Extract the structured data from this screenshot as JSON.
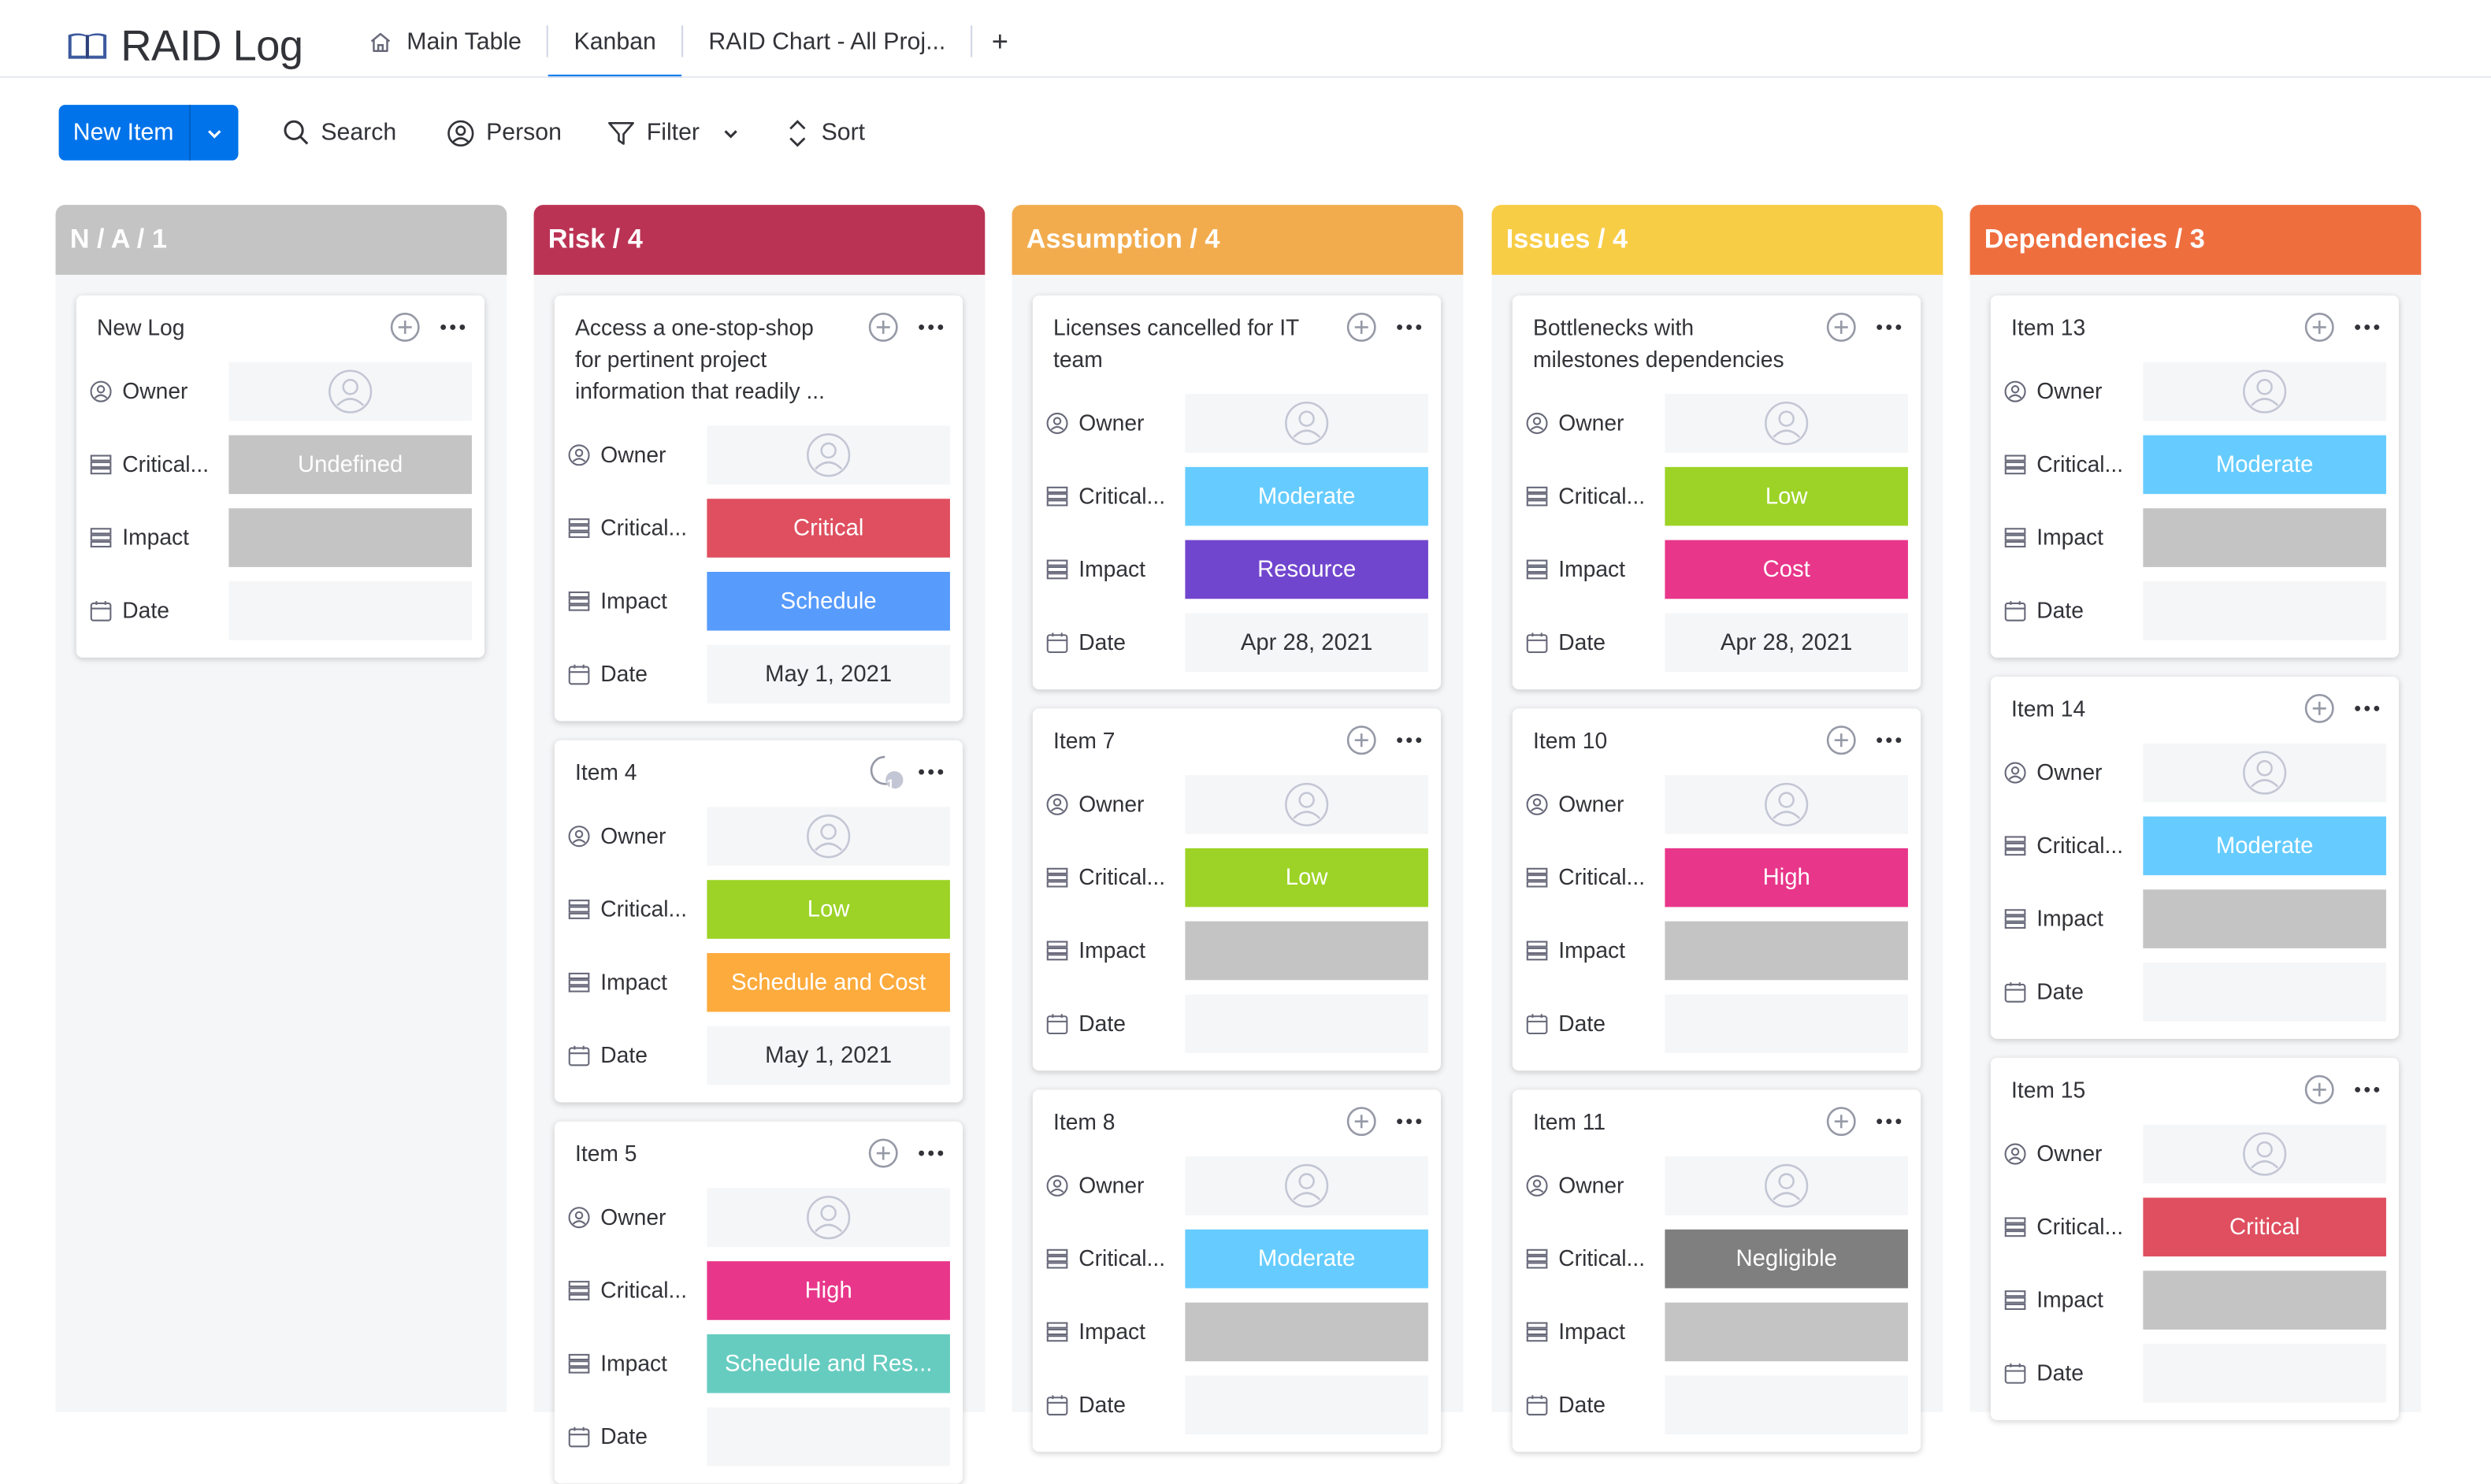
{
  "header": {
    "title": "RAID Log",
    "tabs": [
      {
        "label": "Main Table"
      },
      {
        "label": "Kanban"
      },
      {
        "label": "RAID Chart - All Proj..."
      }
    ],
    "add_tab": "+"
  },
  "toolbar": {
    "new_item": "New Item",
    "search": "Search",
    "person": "Person",
    "filter": "Filter",
    "sort": "Sort"
  },
  "colors": {
    "accent": "#0073ea",
    "undefined": "#c4c4c4",
    "critical": "#df4f5f",
    "schedule": "#579bfc",
    "low": "#9cd326",
    "schedule_and_cost": "#fdab3d",
    "high": "#e8368a",
    "schedule_and_res": "#66ccc0",
    "moderate": "#66ccff",
    "resource": "#7146ce",
    "cost": "#e8368a",
    "negligible": "#7f7f7f"
  },
  "field_labels": {
    "owner": "Owner",
    "critical": "Critical...",
    "impact": "Impact",
    "date": "Date"
  },
  "columns": [
    {
      "header": "N / A / 1",
      "color": "#c4c4c4",
      "cards": [
        {
          "title": "New Log",
          "criticality": "Undefined",
          "criticality_color": "#c4c4c4",
          "impact": "",
          "impact_color": "#c4c4c4",
          "date": ""
        }
      ]
    },
    {
      "header": "Risk / 4",
      "color": "#bb3354",
      "cards": [
        {
          "title": "Access a one-stop-shop for pertinent project information that readily ...",
          "criticality": "Critical",
          "criticality_color": "#df4f5f",
          "impact": "Schedule",
          "impact_color": "#579bfc",
          "date": "May 1, 2021"
        },
        {
          "title": "Item 4",
          "criticality": "Low",
          "criticality_color": "#9cd326",
          "impact": "Schedule and Cost",
          "impact_color": "#fdab3d",
          "date": "May 1, 2021",
          "updates": "1"
        },
        {
          "title": "Item 5",
          "criticality": "High",
          "criticality_color": "#e8368a",
          "impact": "Schedule and Res...",
          "impact_color": "#66ccc0",
          "date": ""
        }
      ]
    },
    {
      "header": "Assumption / 4",
      "color": "#f2ac4e",
      "cards": [
        {
          "title": "Licenses cancelled for IT team",
          "criticality": "Moderate",
          "criticality_color": "#66ccff",
          "impact": "Resource",
          "impact_color": "#7146ce",
          "date": "Apr 28, 2021"
        },
        {
          "title": "Item 7",
          "criticality": "Low",
          "criticality_color": "#9cd326",
          "impact": "",
          "impact_color": "#c4c4c4",
          "date": ""
        },
        {
          "title": "Item 8",
          "criticality": "Moderate",
          "criticality_color": "#66ccff",
          "impact": "",
          "impact_color": "#c4c4c4",
          "date": ""
        }
      ]
    },
    {
      "header": "Issues / 4",
      "color": "#f8cd46",
      "cards": [
        {
          "title": "Bottlenecks with milestones dependencies",
          "criticality": "Low",
          "criticality_color": "#9cd326",
          "impact": "Cost",
          "impact_color": "#e8368a",
          "date": "Apr 28, 2021"
        },
        {
          "title": "Item 10",
          "criticality": "High",
          "criticality_color": "#e8368a",
          "impact": "",
          "impact_color": "#c4c4c4",
          "date": ""
        },
        {
          "title": "Item 11",
          "criticality": "Negligible",
          "criticality_color": "#7f7f7f",
          "impact": "",
          "impact_color": "#c4c4c4",
          "date": ""
        }
      ]
    },
    {
      "header": "Dependencies / 3",
      "color": "#ef6e3e",
      "cards": [
        {
          "title": "Item 13",
          "criticality": "Moderate",
          "criticality_color": "#66ccff",
          "impact": "",
          "impact_color": "#c4c4c4",
          "date": ""
        },
        {
          "title": "Item 14",
          "criticality": "Moderate",
          "criticality_color": "#66ccff",
          "impact": "",
          "impact_color": "#c4c4c4",
          "date": ""
        },
        {
          "title": "Item 15",
          "criticality": "Critical",
          "criticality_color": "#df4f5f",
          "impact": "",
          "impact_color": "#c4c4c4",
          "date": ""
        }
      ]
    }
  ]
}
